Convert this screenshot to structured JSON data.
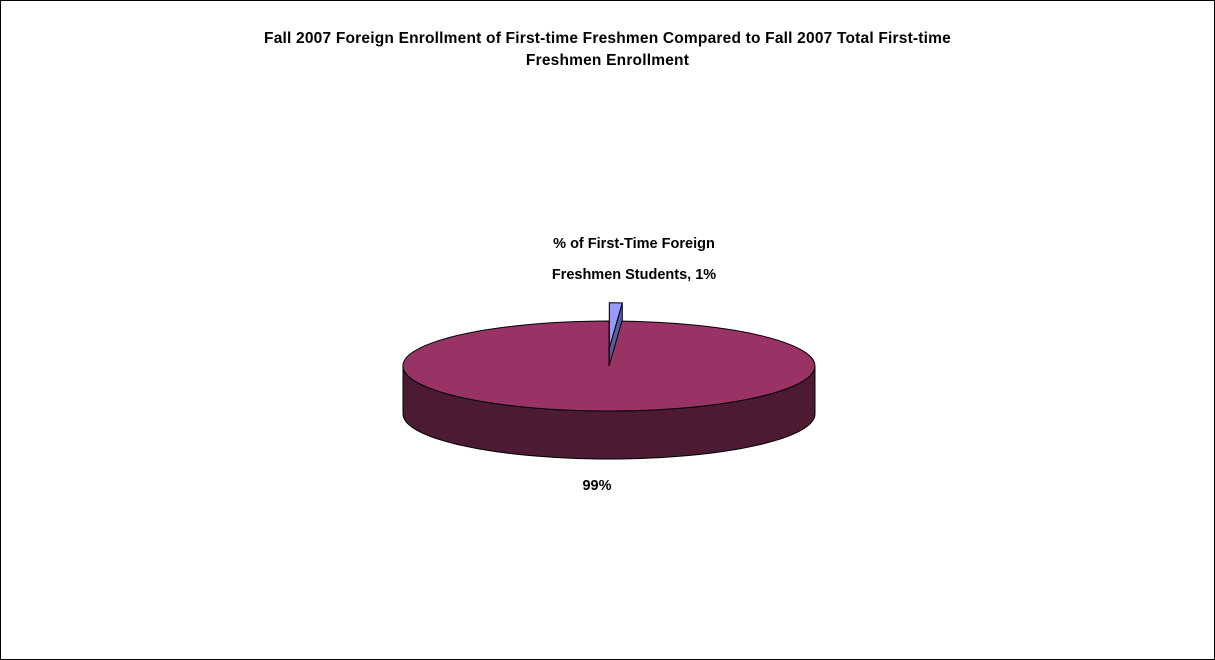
{
  "chart_data": {
    "type": "pie",
    "style": "3d-exploded",
    "title": {
      "line1": "Fall 2007 Foreign Enrollment of First-time Freshmen Compared to Fall 2007 Total First-time",
      "line2": "Freshmen Enrollment"
    },
    "slices": [
      {
        "label_line1": "% of First-Time  Foreign",
        "label_line2": "Freshmen Students, 1%",
        "value": 1,
        "color": "#9999FF"
      },
      {
        "label_line1": "99%",
        "label_line2": "",
        "value": 99,
        "color": "#993366"
      }
    ],
    "legend": "none"
  }
}
